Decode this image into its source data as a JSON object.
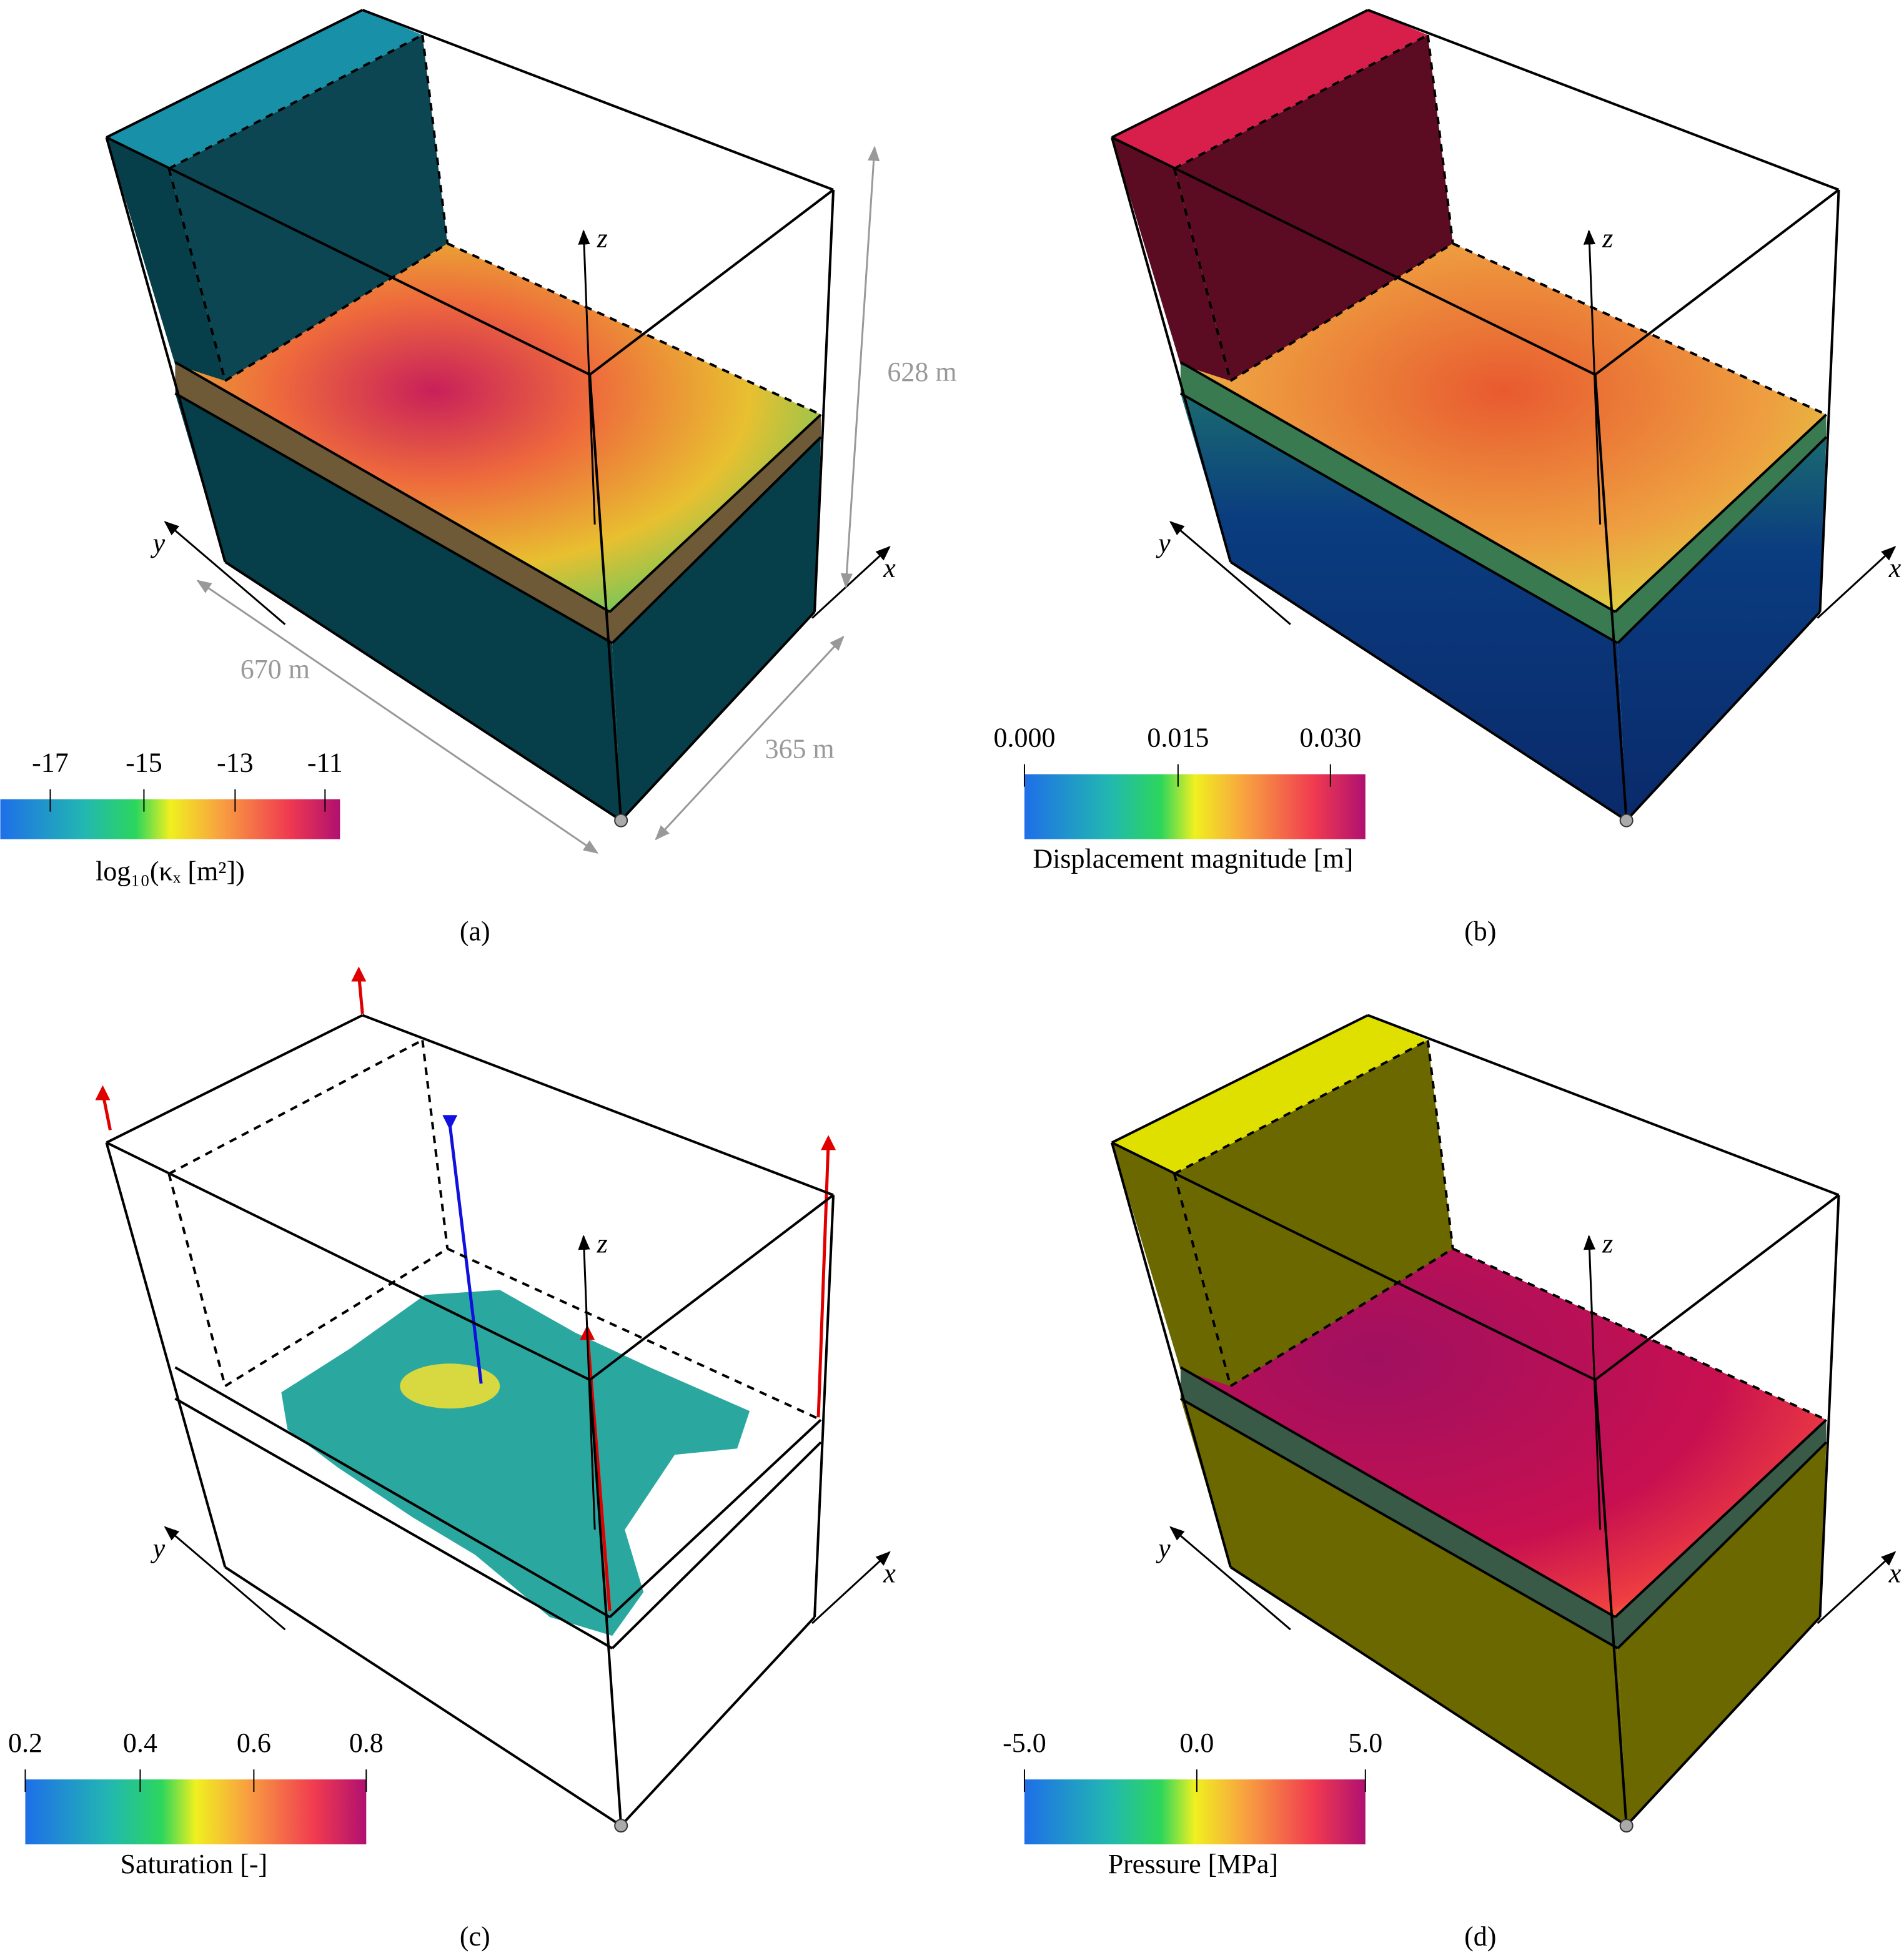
{
  "panels": [
    {
      "label": "(a)",
      "axes": [
        "x",
        "y",
        "z"
      ],
      "colorbar": {
        "ticks": [
          "-17",
          "-15",
          "-13",
          "-11"
        ],
        "title": "log₁₀(κₓ [m²])"
      },
      "annotations": [
        "670 m",
        "365 m",
        "628 m"
      ]
    },
    {
      "label": "(b)",
      "axes": [
        "x",
        "y",
        "z"
      ],
      "colorbar": {
        "ticks": [
          "0.000",
          "0.015",
          "0.030"
        ],
        "title": "Displacement magnitude [m]"
      }
    },
    {
      "label": "(c)",
      "axes": [
        "x",
        "y",
        "z"
      ],
      "colorbar": {
        "ticks": [
          "0.2",
          "0.4",
          "0.6",
          "0.8"
        ],
        "title": "Saturation [-]"
      }
    },
    {
      "label": "(d)",
      "axes": [
        "x",
        "y",
        "z"
      ],
      "colorbar": {
        "ticks": [
          "-5.0",
          "0.0",
          "5.0"
        ],
        "title": "Pressure [MPa]"
      }
    }
  ]
}
